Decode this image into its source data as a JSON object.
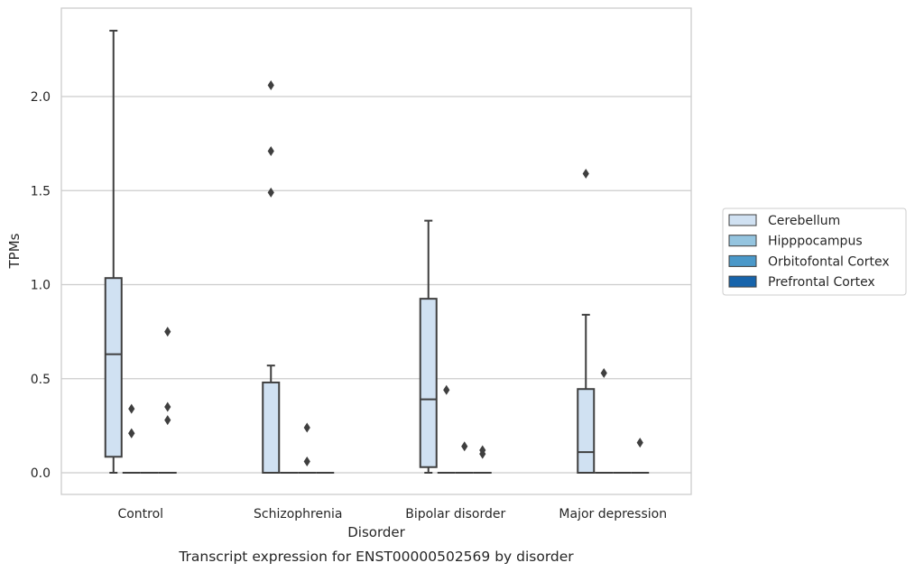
{
  "caption": "Transcript expression for ENST00000502569 by disorder",
  "chart_data": {
    "type": "box",
    "xlabel": "Disorder",
    "ylabel": "TPMs",
    "ylim": [
      -0.11,
      2.46
    ],
    "yticks": [
      "0.0",
      "0.5",
      "1.0",
      "1.5",
      "2.0"
    ],
    "ytick_values": [
      0,
      0.5,
      1.0,
      1.5,
      2.0
    ],
    "grid": "horizontal",
    "legend_position": "right",
    "categories": [
      "Control",
      "Schizophrenia",
      "Bipolar disorder",
      "Major depression"
    ],
    "series": [
      {
        "name": "Cerebellum",
        "color": "#d0e1f2",
        "boxes": [
          {
            "q1": 0.085,
            "median": 0.63,
            "q3": 1.035,
            "whisker_low": 0.0,
            "whisker_high": 2.35,
            "outliers": []
          },
          {
            "q1": 0.0,
            "median": 0.0,
            "q3": 0.48,
            "whisker_low": 0.0,
            "whisker_high": 0.57,
            "outliers": [
              1.49,
              1.71,
              2.06
            ]
          },
          {
            "q1": 0.03,
            "median": 0.39,
            "q3": 0.925,
            "whisker_low": 0.0,
            "whisker_high": 1.34,
            "outliers": []
          },
          {
            "q1": 0.0,
            "median": 0.11,
            "q3": 0.445,
            "whisker_low": 0.0,
            "whisker_high": 0.84,
            "outliers": [
              1.59
            ]
          }
        ]
      },
      {
        "name": "Hipppocampus",
        "color": "#94c4df",
        "boxes": [
          {
            "q1": 0,
            "median": 0,
            "q3": 0,
            "whisker_low": 0,
            "whisker_high": 0,
            "outliers": [
              0.21,
              0.21,
              0.34
            ]
          },
          {
            "q1": 0,
            "median": 0,
            "q3": 0,
            "whisker_low": 0,
            "whisker_high": 0,
            "outliers": []
          },
          {
            "q1": 0,
            "median": 0,
            "q3": 0,
            "whisker_low": 0,
            "whisker_high": 0,
            "outliers": [
              0.44
            ]
          },
          {
            "q1": 0,
            "median": 0,
            "q3": 0,
            "whisker_low": 0,
            "whisker_high": 0,
            "outliers": [
              0.53
            ]
          }
        ]
      },
      {
        "name": "Orbitofontal Cortex",
        "color": "#4a98c9",
        "boxes": [
          {
            "q1": 0,
            "median": 0,
            "q3": 0,
            "whisker_low": 0,
            "whisker_high": 0,
            "outliers": []
          },
          {
            "q1": 0,
            "median": 0,
            "q3": 0,
            "whisker_low": 0,
            "whisker_high": 0,
            "outliers": [
              0.06,
              0.24
            ]
          },
          {
            "q1": 0,
            "median": 0,
            "q3": 0,
            "whisker_low": 0,
            "whisker_high": 0,
            "outliers": [
              0.14
            ]
          },
          {
            "q1": 0,
            "median": 0,
            "q3": 0,
            "whisker_low": 0,
            "whisker_high": 0,
            "outliers": []
          }
        ]
      },
      {
        "name": "Prefrontal Cortex",
        "color": "#1764ab",
        "boxes": [
          {
            "q1": 0,
            "median": 0,
            "q3": 0,
            "whisker_low": 0,
            "whisker_high": 0,
            "outliers": [
              0.28,
              0.35,
              0.75
            ]
          },
          {
            "q1": 0,
            "median": 0,
            "q3": 0,
            "whisker_low": 0,
            "whisker_high": 0,
            "outliers": []
          },
          {
            "q1": 0,
            "median": 0,
            "q3": 0,
            "whisker_low": 0,
            "whisker_high": 0,
            "outliers": [
              0.1,
              0.12
            ]
          },
          {
            "q1": 0,
            "median": 0,
            "q3": 0,
            "whisker_low": 0,
            "whisker_high": 0,
            "outliers": [
              0.16
            ]
          }
        ]
      }
    ]
  },
  "colors": {
    "box_edge": "#3f3f3f",
    "grid": "#cccccc",
    "axes_frame": "#cccccc",
    "outlier": "#3f3f3f"
  }
}
